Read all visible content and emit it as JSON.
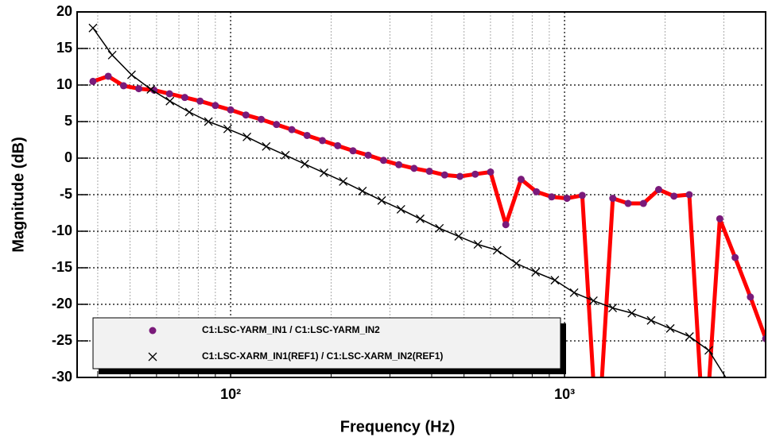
{
  "chart_data": {
    "type": "line",
    "x_label": "Frequency (Hz)",
    "y_label": "Magnitude (dB)",
    "xscale": "log",
    "xlim": [
      34.7,
      4000
    ],
    "ylim": [
      -30,
      20
    ],
    "xticks": [
      {
        "value": 100,
        "label": "10²"
      },
      {
        "value": 1000,
        "label": "10³"
      }
    ],
    "xminorticks": [
      40,
      50,
      60,
      70,
      80,
      90,
      200,
      300,
      400,
      500,
      600,
      700,
      800,
      900,
      2000,
      3000,
      4000
    ],
    "yticks": [
      -30,
      -25,
      -20,
      -15,
      -10,
      -5,
      0,
      5,
      10,
      15,
      20
    ],
    "grid": true,
    "legend": "lower left",
    "series": [
      {
        "name": "C1:LSC-YARM_IN1 / C1:LSC-YARM_IN2",
        "color": "#ff0000",
        "marker": "circle",
        "marker_color": "#7a1a7a",
        "x": [
          38.7,
          43.0,
          47.8,
          53.1,
          59.0,
          65.6,
          72.9,
          81.0,
          90.0,
          100.0,
          111.1,
          123.5,
          137.2,
          152.5,
          169.4,
          188.3,
          209.2,
          232.5,
          258.2,
          287.0,
          318.9,
          354.3,
          393.7,
          437.5,
          486.1,
          540.1,
          600.2,
          666.9,
          741.0,
          823.4,
          914.9,
          1016.7,
          1129.7,
          1255.2,
          1394.7,
          1549.8,
          1722.2,
          1913.6,
          2126.3,
          2362.6,
          2625.2,
          2917.0,
          3241.3,
          3601.5,
          4001.9
        ],
        "values": [
          10.5,
          11.2,
          9.9,
          9.5,
          9.3,
          8.8,
          8.3,
          7.8,
          7.2,
          6.6,
          5.9,
          5.3,
          4.6,
          3.9,
          3.1,
          2.4,
          1.7,
          1.0,
          0.4,
          -0.3,
          -0.9,
          -1.4,
          -1.8,
          -2.3,
          -2.5,
          -2.2,
          -1.9,
          -9.1,
          -2.9,
          -4.6,
          -5.3,
          -5.5,
          -5.1,
          -40,
          -5.5,
          -6.2,
          -6.2,
          -4.3,
          -5.2,
          -5.0,
          -40,
          -8.3,
          -13.6,
          -19.0,
          -24.7
        ]
      },
      {
        "name": "C1:LSC-XARM_IN1(REF1) / C1:LSC-XARM_IN2(REF1)",
        "color": "#000000",
        "marker": "x",
        "marker_color": "#000000",
        "x": [
          38.7,
          44.2,
          50.5,
          57.7,
          65.8,
          75.2,
          85.8,
          98.0,
          111.9,
          127.8,
          145.9,
          166.7,
          190.3,
          217.3,
          248.2,
          283.4,
          323.6,
          369.5,
          421.9,
          481.8,
          550.1,
          628.2,
          717.3,
          819.1,
          935.3,
          1068,
          1220,
          1393,
          1590,
          1816,
          2073,
          2367,
          2703,
          3087,
          3525
        ],
        "values": [
          17.8,
          14.1,
          11.4,
          9.4,
          7.8,
          6.3,
          5.0,
          4.0,
          2.9,
          1.6,
          0.4,
          -0.8,
          -2.0,
          -3.2,
          -4.5,
          -5.8,
          -7.0,
          -8.3,
          -9.6,
          -10.7,
          -11.8,
          -12.6,
          -14.4,
          -15.6,
          -16.7,
          -18.4,
          -19.5,
          -20.5,
          -21.2,
          -22.2,
          -23.3,
          -24.4,
          -26.3,
          -30.5,
          -35
        ]
      }
    ]
  }
}
